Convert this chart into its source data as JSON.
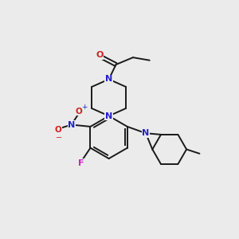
{
  "background_color": "#ebebeb",
  "bond_color": "#1a1a1a",
  "N_color": "#2222cc",
  "O_color": "#cc2222",
  "F_color": "#cc22cc",
  "lw": 1.4,
  "figsize": [
    3.0,
    3.0
  ],
  "dpi": 100,
  "xlim": [
    0.0,
    10.0
  ],
  "ylim": [
    0.5,
    10.5
  ]
}
